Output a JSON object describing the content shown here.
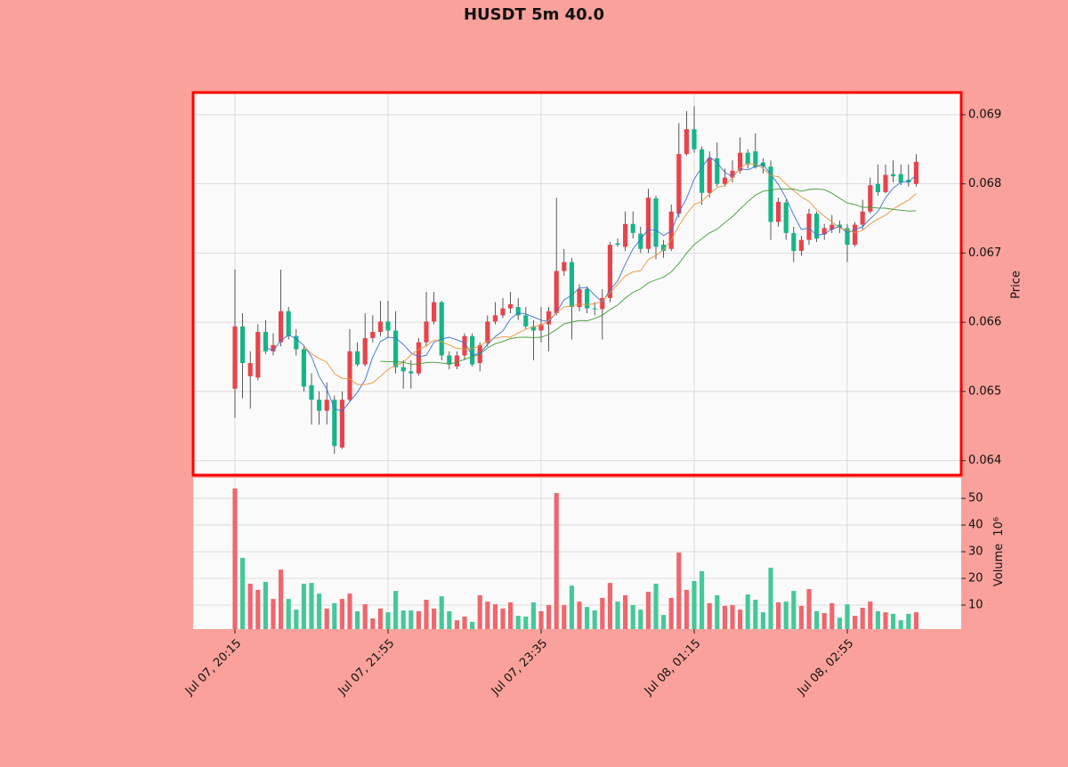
{
  "chart_data": {
    "type": "candlestick",
    "title": "HUSDT 5m 40.0",
    "categories": [
      "Jul 07, 20:15",
      null,
      null,
      null,
      null,
      null,
      null,
      null,
      null,
      null,
      null,
      null,
      null,
      null,
      null,
      null,
      null,
      null,
      null,
      null,
      "Jul 07, 21:55",
      null,
      null,
      null,
      null,
      null,
      null,
      null,
      null,
      null,
      null,
      null,
      null,
      null,
      null,
      null,
      null,
      null,
      null,
      null,
      "Jul 07, 23:35",
      null,
      null,
      null,
      null,
      null,
      null,
      null,
      null,
      null,
      null,
      null,
      null,
      null,
      null,
      null,
      null,
      null,
      null,
      null,
      "Jul 08, 01:15",
      null,
      null,
      null,
      null,
      null,
      null,
      null,
      null,
      null,
      null,
      null,
      null,
      null,
      null,
      null,
      null,
      null,
      null,
      null,
      "Jul 08, 02:55",
      null,
      null,
      null,
      null,
      null,
      null,
      null,
      null,
      null
    ],
    "open": [
      0.06504,
      0.06594,
      0.06522,
      0.0652,
      0.06586,
      0.06558,
      0.06571,
      0.06616,
      0.0658,
      0.06561,
      0.06509,
      0.06488,
      0.06472,
      0.06488,
      0.06419,
      0.06488,
      0.06558,
      0.06539,
      0.06577,
      0.06586,
      0.06601,
      0.06588,
      0.06535,
      0.06529,
      0.06526,
      0.06571,
      0.06601,
      0.06629,
      0.06552,
      0.06536,
      0.06552,
      0.0658,
      0.06541,
      0.0657,
      0.06601,
      0.0661,
      0.0662,
      0.06622,
      0.0661,
      0.06594,
      0.06588,
      0.06597,
      0.06613,
      0.06674,
      0.06687,
      0.06622,
      0.06648,
      0.0662,
      0.06619,
      0.06635,
      0.06714,
      0.06709,
      0.06742,
      0.06728,
      0.06706,
      0.06779,
      0.06712,
      0.06706,
      0.06757,
      0.06843,
      0.06879,
      0.0685,
      0.06787,
      0.06837,
      0.068,
      0.06809,
      0.06819,
      0.06845,
      0.06847,
      0.06831,
      0.06825,
      0.06745,
      0.06773,
      0.06729,
      0.06703,
      0.06719,
      0.06757,
      0.06727,
      0.06734,
      0.06741,
      0.06736,
      0.06712,
      0.06741,
      0.0676,
      0.068,
      0.06788,
      0.06814,
      0.06814,
      0.06806,
      0.068
    ],
    "high": [
      0.06676,
      0.06613,
      0.06558,
      0.06597,
      0.06603,
      0.06584,
      0.06676,
      0.06622,
      0.0659,
      0.06565,
      0.06526,
      0.065,
      0.06513,
      0.06494,
      0.065,
      0.0659,
      0.06571,
      0.06613,
      0.0661,
      0.06631,
      0.06631,
      0.06616,
      0.06545,
      0.06545,
      0.06577,
      0.06644,
      0.06644,
      0.06631,
      0.06558,
      0.06558,
      0.06584,
      0.06584,
      0.06571,
      0.0661,
      0.06629,
      0.06635,
      0.06644,
      0.06635,
      0.06622,
      0.06603,
      0.06622,
      0.06622,
      0.0678,
      0.06706,
      0.06693,
      0.06655,
      0.06652,
      0.06629,
      0.06648,
      0.06716,
      0.06721,
      0.0676,
      0.0676,
      0.06738,
      0.06793,
      0.06783,
      0.06719,
      0.0677,
      0.06888,
      0.06905,
      0.06912,
      0.06854,
      0.06847,
      0.0686,
      0.06822,
      0.06834,
      0.06867,
      0.0685,
      0.06873,
      0.06837,
      0.06834,
      0.0678,
      0.06777,
      0.06738,
      0.06725,
      0.06764,
      0.0676,
      0.06742,
      0.06755,
      0.06747,
      0.06742,
      0.06745,
      0.06777,
      0.06809,
      0.06828,
      0.06828,
      0.06834,
      0.06828,
      0.06828,
      0.06843
    ],
    "low": [
      0.06462,
      0.0649,
      0.06475,
      0.06516,
      0.06554,
      0.06552,
      0.06565,
      0.06575,
      0.06552,
      0.065,
      0.06452,
      0.06452,
      0.06452,
      0.0641,
      0.06417,
      0.06485,
      0.06536,
      0.06536,
      0.06571,
      0.0658,
      0.06577,
      0.06526,
      0.06504,
      0.06504,
      0.06523,
      0.06565,
      0.06597,
      0.06545,
      0.06532,
      0.06532,
      0.06545,
      0.06536,
      0.06529,
      0.06565,
      0.06597,
      0.06606,
      0.06613,
      0.06603,
      0.0659,
      0.06545,
      0.06571,
      0.06558,
      0.0661,
      0.06667,
      0.06575,
      0.06616,
      0.06613,
      0.0661,
      0.06575,
      0.06629,
      0.06709,
      0.06703,
      0.06721,
      0.067,
      0.067,
      0.06691,
      0.06693,
      0.06703,
      0.06751,
      0.06841,
      0.06845,
      0.0677,
      0.0678,
      0.06796,
      0.06796,
      0.06802,
      0.06815,
      0.06822,
      0.06822,
      0.06815,
      0.06719,
      0.06738,
      0.06719,
      0.06687,
      0.06696,
      0.06712,
      0.06716,
      0.06719,
      0.06729,
      0.06729,
      0.06687,
      0.06709,
      0.06734,
      0.06757,
      0.06783,
      0.06786,
      0.06802,
      0.06798,
      0.06796,
      0.06796
    ],
    "close": [
      0.06594,
      0.06541,
      0.06541,
      0.06586,
      0.06558,
      0.06567,
      0.06616,
      0.0658,
      0.06561,
      0.06507,
      0.06488,
      0.06472,
      0.06488,
      0.06421,
      0.06488,
      0.06558,
      0.06539,
      0.06577,
      0.06586,
      0.06601,
      0.06588,
      0.06535,
      0.06529,
      0.06526,
      0.06571,
      0.06601,
      0.06629,
      0.06552,
      0.06539,
      0.06552,
      0.0658,
      0.06539,
      0.06567,
      0.06601,
      0.0661,
      0.0662,
      0.06626,
      0.0661,
      0.06594,
      0.06588,
      0.06597,
      0.06616,
      0.06674,
      0.06687,
      0.06622,
      0.06648,
      0.0662,
      0.06619,
      0.06635,
      0.06712,
      0.06712,
      0.06742,
      0.06729,
      0.06706,
      0.0678,
      0.06709,
      0.06703,
      0.0676,
      0.06843,
      0.06879,
      0.0685,
      0.06787,
      0.06837,
      0.068,
      0.06809,
      0.06819,
      0.06845,
      0.06828,
      0.06824,
      0.06825,
      0.06745,
      0.06774,
      0.06729,
      0.06703,
      0.06719,
      0.06757,
      0.06721,
      0.06736,
      0.06741,
      0.06737,
      0.06712,
      0.06741,
      0.0676,
      0.06798,
      0.06788,
      0.06813,
      0.06811,
      0.06802,
      0.06802,
      0.06832
    ],
    "ylabel": "Price",
    "ylim": [
      0.06379,
      0.06932
    ],
    "yticks": [
      0.064,
      0.065,
      0.066,
      0.067,
      0.068,
      0.069
    ],
    "grid": true,
    "up_color": "#e8434c",
    "down_color": "#16b587",
    "moving_averages": [
      {
        "window": 5,
        "color": "#3a6fd8"
      },
      {
        "window": 10,
        "color": "#e8953a"
      },
      {
        "window": 20,
        "color": "#3f9a34"
      }
    ],
    "volume": {
      "values": [
        53.7,
        27.7,
        18,
        15.7,
        18.7,
        12.3,
        23.3,
        12.3,
        8.3,
        18,
        18.3,
        14.3,
        8.7,
        10.7,
        12.3,
        14.3,
        7.7,
        10.3,
        5,
        8.7,
        7.3,
        15.3,
        8,
        8,
        7.7,
        12,
        8.7,
        13.3,
        7.7,
        4.3,
        5.7,
        3.7,
        13.7,
        11.3,
        10.3,
        8.7,
        11,
        6,
        5.7,
        11,
        7.7,
        10,
        52,
        10,
        17.3,
        11.3,
        9.3,
        8,
        12.7,
        18.3,
        11.3,
        13.7,
        10,
        8.3,
        15,
        18,
        6.3,
        12.7,
        29.7,
        15.7,
        19,
        22.7,
        10.7,
        13.7,
        9.7,
        10,
        8.3,
        14,
        12,
        7.3,
        24,
        11,
        11.3,
        15.3,
        9.7,
        16,
        7.7,
        7,
        10.7,
        5.3,
        10.3,
        6,
        9,
        11.3,
        7.7,
        7.3,
        6.7,
        4.3,
        6.7,
        7.3
      ],
      "ylabel": "Volume",
      "offset_label": "10⁶",
      "ylim": [
        1,
        57.7
      ],
      "yticks": [
        10,
        20,
        30,
        40,
        50
      ],
      "up_color": "#f0666c",
      "down_color": "#45c898"
    }
  }
}
